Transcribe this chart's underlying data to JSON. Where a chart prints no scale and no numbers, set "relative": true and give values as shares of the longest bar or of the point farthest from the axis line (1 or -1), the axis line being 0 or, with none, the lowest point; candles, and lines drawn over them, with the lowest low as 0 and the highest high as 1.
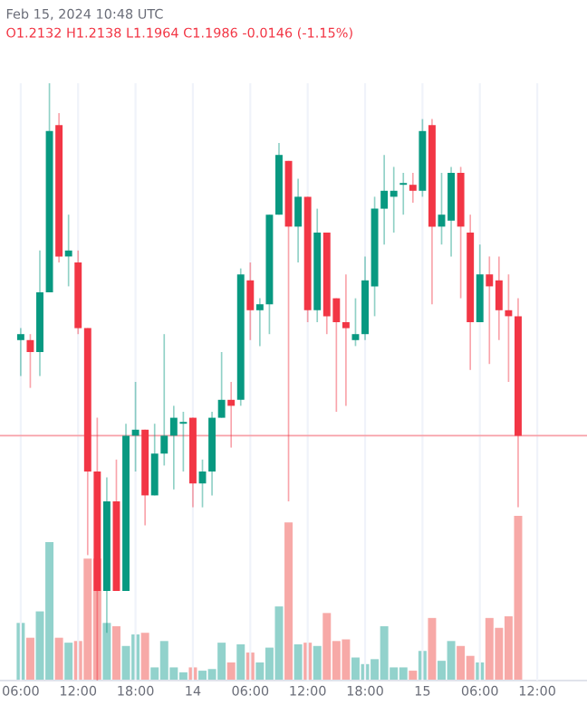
{
  "chart_data": [
    {
      "type": "candlestick",
      "relative": true,
      "tick_labels": false,
      "grid": "x",
      "annotations": [
        "Feb 15, 2024 10:48 UTC",
        "O1.2132 H1.2138 L1.1964 C1.1986 -0.0146 (-1.15%)"
      ],
      "x": [
        "2024-02-13T06:00",
        "2024-02-13T07:00",
        "2024-02-13T08:00",
        "2024-02-13T09:00",
        "2024-02-13T10:00",
        "2024-02-13T11:00",
        "2024-02-13T12:00",
        "2024-02-13T13:00",
        "2024-02-13T14:00",
        "2024-02-13T15:00",
        "2024-02-13T16:00",
        "2024-02-13T17:00",
        "2024-02-13T18:00",
        "2024-02-13T19:00",
        "2024-02-13T20:00",
        "2024-02-13T21:00",
        "2024-02-13T22:00",
        "2024-02-13T23:00",
        "2024-02-14T00:00",
        "2024-02-14T01:00",
        "2024-02-14T02:00",
        "2024-02-14T03:00",
        "2024-02-14T04:00",
        "2024-02-14T05:00",
        "2024-02-14T06:00",
        "2024-02-14T07:00",
        "2024-02-14T08:00",
        "2024-02-14T09:00",
        "2024-02-14T10:00",
        "2024-02-14T11:00",
        "2024-02-14T12:00",
        "2024-02-14T13:00",
        "2024-02-14T14:00",
        "2024-02-14T15:00",
        "2024-02-14T16:00",
        "2024-02-14T17:00",
        "2024-02-14T18:00",
        "2024-02-14T19:00",
        "2024-02-14T20:00",
        "2024-02-14T21:00",
        "2024-02-14T22:00",
        "2024-02-14T23:00",
        "2024-02-15T00:00",
        "2024-02-15T01:00",
        "2024-02-15T02:00",
        "2024-02-15T03:00",
        "2024-02-15T04:00",
        "2024-02-15T05:00",
        "2024-02-15T06:00",
        "2024-02-15T07:00",
        "2024-02-15T08:00",
        "2024-02-15T09:00",
        "2024-02-15T10:00"
      ],
      "ohlc": [
        [
          0.57,
          0.59,
          0.51,
          0.58
        ],
        [
          0.57,
          0.58,
          0.49,
          0.55
        ],
        [
          0.55,
          0.72,
          0.51,
          0.65
        ],
        [
          0.65,
          1.0,
          0.65,
          0.92
        ],
        [
          0.93,
          0.95,
          0.7,
          0.71
        ],
        [
          0.71,
          0.78,
          0.66,
          0.72
        ],
        [
          0.7,
          0.72,
          0.58,
          0.59
        ],
        [
          0.59,
          0.59,
          0.21,
          0.35
        ],
        [
          0.35,
          0.44,
          0.0,
          0.15
        ],
        [
          0.15,
          0.34,
          0.08,
          0.3
        ],
        [
          0.3,
          0.37,
          0.15,
          0.15
        ],
        [
          0.15,
          0.43,
          0.15,
          0.41
        ],
        [
          0.41,
          0.5,
          0.35,
          0.42
        ],
        [
          0.42,
          0.42,
          0.26,
          0.31
        ],
        [
          0.31,
          0.43,
          0.31,
          0.38
        ],
        [
          0.38,
          0.58,
          0.36,
          0.41
        ],
        [
          0.41,
          0.46,
          0.32,
          0.44
        ],
        [
          0.43,
          0.45,
          0.35,
          0.43
        ],
        [
          0.44,
          0.44,
          0.29,
          0.33
        ],
        [
          0.33,
          0.37,
          0.29,
          0.35
        ],
        [
          0.35,
          0.45,
          0.31,
          0.44
        ],
        [
          0.44,
          0.55,
          0.44,
          0.47
        ],
        [
          0.47,
          0.5,
          0.39,
          0.46
        ],
        [
          0.47,
          0.69,
          0.46,
          0.68
        ],
        [
          0.67,
          0.7,
          0.57,
          0.62
        ],
        [
          0.62,
          0.64,
          0.56,
          0.63
        ],
        [
          0.63,
          0.78,
          0.58,
          0.78
        ],
        [
          0.78,
          0.9,
          0.78,
          0.88
        ],
        [
          0.87,
          0.87,
          0.3,
          0.76
        ],
        [
          0.76,
          0.84,
          0.7,
          0.81
        ],
        [
          0.81,
          0.81,
          0.6,
          0.62
        ],
        [
          0.62,
          0.79,
          0.6,
          0.75
        ],
        [
          0.75,
          0.75,
          0.58,
          0.61
        ],
        [
          0.64,
          0.64,
          0.45,
          0.6
        ],
        [
          0.6,
          0.68,
          0.46,
          0.59
        ],
        [
          0.57,
          0.64,
          0.56,
          0.58
        ],
        [
          0.58,
          0.71,
          0.57,
          0.67
        ],
        [
          0.66,
          0.81,
          0.61,
          0.79
        ],
        [
          0.79,
          0.88,
          0.73,
          0.82
        ],
        [
          0.81,
          0.86,
          0.75,
          0.82
        ],
        [
          0.83,
          0.85,
          0.78,
          0.83
        ],
        [
          0.83,
          0.85,
          0.8,
          0.82
        ],
        [
          0.82,
          0.94,
          0.81,
          0.92
        ],
        [
          0.93,
          0.94,
          0.63,
          0.76
        ],
        [
          0.76,
          0.85,
          0.73,
          0.78
        ],
        [
          0.77,
          0.86,
          0.71,
          0.85
        ],
        [
          0.85,
          0.86,
          0.64,
          0.76
        ],
        [
          0.75,
          0.78,
          0.52,
          0.6
        ],
        [
          0.6,
          0.73,
          0.6,
          0.68
        ],
        [
          0.68,
          0.71,
          0.53,
          0.66
        ],
        [
          0.67,
          0.71,
          0.57,
          0.62
        ],
        [
          0.62,
          0.68,
          0.5,
          0.61
        ],
        [
          0.61,
          0.64,
          0.29,
          0.41
        ]
      ],
      "colors": [
        "#089981",
        "#f23645",
        "#089981",
        "#089981",
        "#f23645",
        "#089981",
        "#f23645",
        "#f23645",
        "#f23645",
        "#089981",
        "#f23645",
        "#089981",
        "#089981",
        "#f23645",
        "#089981",
        "#089981",
        "#089981",
        "#089981",
        "#f23645",
        "#089981",
        "#089981",
        "#089981",
        "#f23645",
        "#089981",
        "#f23645",
        "#089981",
        "#089981",
        "#089981",
        "#f23645",
        "#089981",
        "#f23645",
        "#089981",
        "#f23645",
        "#f23645",
        "#f23645",
        "#089981",
        "#089981",
        "#089981",
        "#089981",
        "#089981",
        "#089981",
        "#f23645",
        "#089981",
        "#f23645",
        "#089981",
        "#089981",
        "#f23645",
        "#f23645",
        "#089981",
        "#f23645",
        "#f23645",
        "#f23645",
        "#f23645"
      ],
      "ref_lines": [
        {
          "axis": "y",
          "value": 0.41,
          "color": "#f7a0a8"
        }
      ],
      "xlim": [
        "2024-02-13T03:50",
        "2024-02-15T17:12"
      ],
      "xticks": [
        {
          "value": "2024-02-13T06:00",
          "label": null
        },
        {
          "value": "2024-02-13T12:00",
          "label": null
        },
        {
          "value": "2024-02-13T18:00",
          "label": null
        },
        {
          "value": "2024-02-14T00:00",
          "label": null
        },
        {
          "value": "2024-02-14T06:00",
          "label": null
        },
        {
          "value": "2024-02-14T12:00",
          "label": null
        },
        {
          "value": "2024-02-14T18:00",
          "label": null
        },
        {
          "value": "2024-02-15T00:00",
          "label": null
        },
        {
          "value": "2024-02-15T06:00",
          "label": null
        },
        {
          "value": "2024-02-15T12:00",
          "label": null
        }
      ]
    },
    {
      "type": "bar",
      "relative": true,
      "tick_labels": "x",
      "x": [
        "2024-02-13T06:00",
        "2024-02-13T07:00",
        "2024-02-13T08:00",
        "2024-02-13T09:00",
        "2024-02-13T10:00",
        "2024-02-13T11:00",
        "2024-02-13T12:00",
        "2024-02-13T13:00",
        "2024-02-13T14:00",
        "2024-02-13T15:00",
        "2024-02-13T16:00",
        "2024-02-13T17:00",
        "2024-02-13T18:00",
        "2024-02-13T19:00",
        "2024-02-13T20:00",
        "2024-02-13T21:00",
        "2024-02-13T22:00",
        "2024-02-13T23:00",
        "2024-02-14T00:00",
        "2024-02-14T01:00",
        "2024-02-14T02:00",
        "2024-02-14T03:00",
        "2024-02-14T04:00",
        "2024-02-14T05:00",
        "2024-02-14T06:00",
        "2024-02-14T07:00",
        "2024-02-14T08:00",
        "2024-02-14T09:00",
        "2024-02-14T10:00",
        "2024-02-14T11:00",
        "2024-02-14T12:00",
        "2024-02-14T13:00",
        "2024-02-14T14:00",
        "2024-02-14T15:00",
        "2024-02-14T16:00",
        "2024-02-14T17:00",
        "2024-02-14T18:00",
        "2024-02-14T19:00",
        "2024-02-14T20:00",
        "2024-02-14T21:00",
        "2024-02-14T22:00",
        "2024-02-14T23:00",
        "2024-02-15T00:00",
        "2024-02-15T01:00",
        "2024-02-15T02:00",
        "2024-02-15T03:00",
        "2024-02-15T04:00",
        "2024-02-15T05:00",
        "2024-02-15T06:00",
        "2024-02-15T07:00",
        "2024-02-15T08:00",
        "2024-02-15T09:00",
        "2024-02-15T10:00"
      ],
      "values": [
        0.35,
        0.26,
        0.42,
        0.84,
        0.26,
        0.23,
        0.24,
        0.74,
        0.74,
        0.35,
        0.33,
        0.21,
        0.28,
        0.29,
        0.08,
        0.24,
        0.08,
        0.05,
        0.08,
        0.06,
        0.07,
        0.23,
        0.11,
        0.22,
        0.17,
        0.11,
        0.2,
        0.45,
        0.96,
        0.22,
        0.23,
        0.21,
        0.41,
        0.24,
        0.25,
        0.14,
        0.1,
        0.13,
        0.33,
        0.08,
        0.08,
        0.06,
        0.18,
        0.38,
        0.12,
        0.24,
        0.21,
        0.15,
        0.11,
        0.38,
        0.32,
        0.39,
        1.0
      ],
      "colors": [
        "#92d2cc",
        "#f7a9a7",
        "#92d2cc",
        "#92d2cc",
        "#f7a9a7",
        "#92d2cc",
        "#f7a9a7",
        "#f7a9a7",
        "#f7a9a7",
        "#92d2cc",
        "#f7a9a7",
        "#92d2cc",
        "#92d2cc",
        "#f7a9a7",
        "#92d2cc",
        "#92d2cc",
        "#92d2cc",
        "#92d2cc",
        "#f7a9a7",
        "#92d2cc",
        "#92d2cc",
        "#92d2cc",
        "#f7a9a7",
        "#92d2cc",
        "#f7a9a7",
        "#92d2cc",
        "#92d2cc",
        "#92d2cc",
        "#f7a9a7",
        "#92d2cc",
        "#f7a9a7",
        "#92d2cc",
        "#f7a9a7",
        "#f7a9a7",
        "#f7a9a7",
        "#92d2cc",
        "#92d2cc",
        "#92d2cc",
        "#92d2cc",
        "#92d2cc",
        "#92d2cc",
        "#f7a9a7",
        "#92d2cc",
        "#f7a9a7",
        "#92d2cc",
        "#92d2cc",
        "#f7a9a7",
        "#f7a9a7",
        "#92d2cc",
        "#f7a9a7",
        "#f7a9a7",
        "#f7a9a7",
        "#f7a9a7"
      ],
      "xlim": [
        "2024-02-13T03:50",
        "2024-02-15T17:12"
      ],
      "xticks": [
        {
          "value": "2024-02-13T06:00",
          "label": "06:00"
        },
        {
          "value": "2024-02-13T12:00",
          "label": "12:00"
        },
        {
          "value": "2024-02-13T18:00",
          "label": "18:00"
        },
        {
          "value": "2024-02-14T00:00",
          "label": "14"
        },
        {
          "value": "2024-02-14T06:00",
          "label": "06:00"
        },
        {
          "value": "2024-02-14T12:00",
          "label": "12:00"
        },
        {
          "value": "2024-02-14T18:00",
          "label": "18:00"
        },
        {
          "value": "2024-02-15T00:00",
          "label": "15"
        },
        {
          "value": "2024-02-15T06:00",
          "label": "06:00"
        },
        {
          "value": "2024-02-15T12:00",
          "label": "12:00"
        }
      ]
    }
  ]
}
